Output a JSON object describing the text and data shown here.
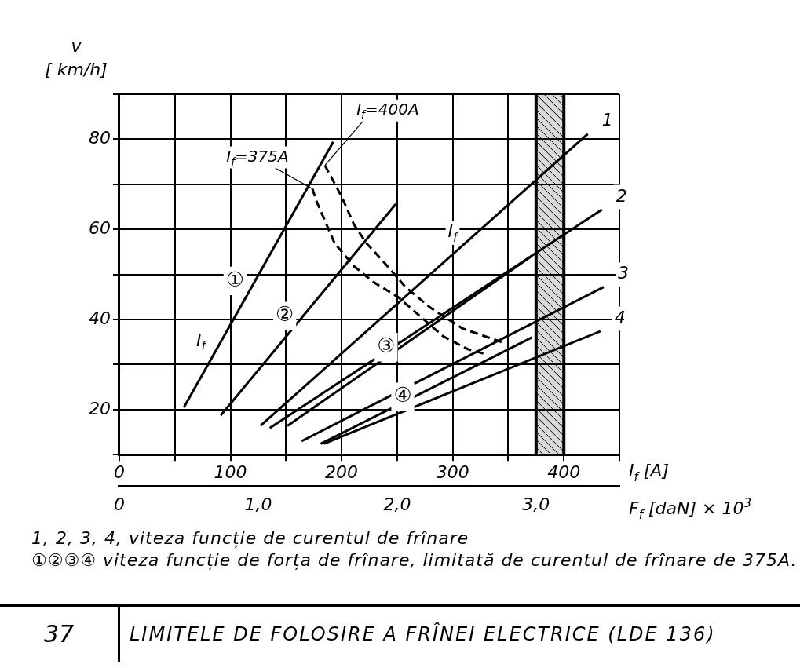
{
  "chart_data": {
    "type": "line",
    "title": "LIMITELE DE FOLOSIRE A FRÎNEI ELECTRICE (LDE 136)",
    "xlabel": "I$_{f}$ [A]",
    "x2label": "F$_{f}$ [daN] × 10$^{3}$",
    "ylabel": "v [ km/h]",
    "xlim": [
      0,
      450
    ],
    "xticks": [
      0,
      {
        "value": 50,
        "label": null
      },
      100,
      {
        "value": 150,
        "label": null
      },
      200,
      {
        "value": 250,
        "label": null
      },
      300,
      {
        "value": 350,
        "label": null
      },
      400,
      {
        "value": 450,
        "label": null
      }
    ],
    "x2lim": [
      0,
      3.6
    ],
    "x2ticks": [
      0,
      {
        "value": 1,
        "label": "1,0"
      },
      {
        "value": 2,
        "label": "2,0"
      },
      {
        "value": 3,
        "label": "3,0"
      }
    ],
    "ylim": [
      10,
      90
    ],
    "yticks": [
      {
        "value": 10,
        "label": null
      },
      20,
      {
        "value": 30,
        "label": null
      },
      40,
      {
        "value": 50,
        "label": null
      },
      60,
      {
        "value": 70,
        "label": null
      },
      80,
      {
        "value": 90,
        "label": null
      }
    ],
    "grid": true,
    "series": [
      {
        "name": "1",
        "color": "#000000",
        "x": [
          127,
          421.5
        ],
        "values": [
          16.4,
          81.2
        ]
      },
      {
        "name": "2",
        "color": "#000000",
        "x": [
          135.4,
          434.3
        ],
        "values": [
          15.9,
          64.4
        ]
      },
      {
        "name": "3",
        "color": "#000000",
        "x": [
          164,
          435.8
        ],
        "values": [
          13,
          47.2
        ]
      },
      {
        "name": "4",
        "color": "#000000",
        "x": [
          184,
          432.9
        ],
        "values": [
          12.4,
          37.4
        ]
      },
      {
        "name": "①",
        "color": "#000000",
        "axis": "x2",
        "x": [
          0.465,
          1.54
        ],
        "values": [
          20.5,
          79.4
        ]
      },
      {
        "name": "②",
        "color": "#000000",
        "axis": "x2",
        "x": [
          0.73,
          1.99
        ],
        "values": [
          18.7,
          65.6
        ]
      },
      {
        "name": "③",
        "color": "#000000",
        "axis": "x2",
        "x": [
          1.21,
          2.97
        ],
        "values": [
          16.4,
          54.1
        ]
      },
      {
        "name": "④",
        "color": "#000000",
        "axis": "x2",
        "x": [
          1.45,
          2.97
        ],
        "values": [
          12.4,
          36
        ]
      },
      {
        "name": "I$_{f}$=375A",
        "color": "#000000",
        "axis": "x2",
        "line_style": "dashed",
        "x": [
          1.39,
          1.42,
          1.55,
          1.69,
          1.83,
          2.01,
          2.33,
          2.51,
          2.65
        ],
        "values": [
          69,
          66.2,
          56.9,
          51.8,
          48.3,
          44.9,
          36.3,
          33.4,
          32.2
        ]
      },
      {
        "name": "I$_{f}$=400A",
        "color": "#000000",
        "axis": "x2",
        "line_style": "dashed",
        "x": [
          1.48,
          1.6,
          1.69,
          1.78,
          1.9,
          2.06,
          2.24,
          2.47,
          2.77
        ],
        "values": [
          74.2,
          67.3,
          61,
          56.9,
          52.9,
          47.2,
          42.6,
          38,
          34.8
        ]
      }
    ],
    "bands": [
      {
        "axis": "x",
        "from": 375,
        "to": 400,
        "color": "#000000"
      }
    ],
    "annotations": [
      {
        "text": "I$_{f}$",
        "x": 87.5,
        "y": 33.4
      },
      {
        "text": "I$_{f}$",
        "x": 314,
        "y": 57.5
      },
      "1, 2, 3, 4,   viteza funcție de curentul de frînare",
      "①②③④   viteza funcție de forța de frînare, limitată de curentul de frînare de 375A.",
      "37"
    ]
  }
}
